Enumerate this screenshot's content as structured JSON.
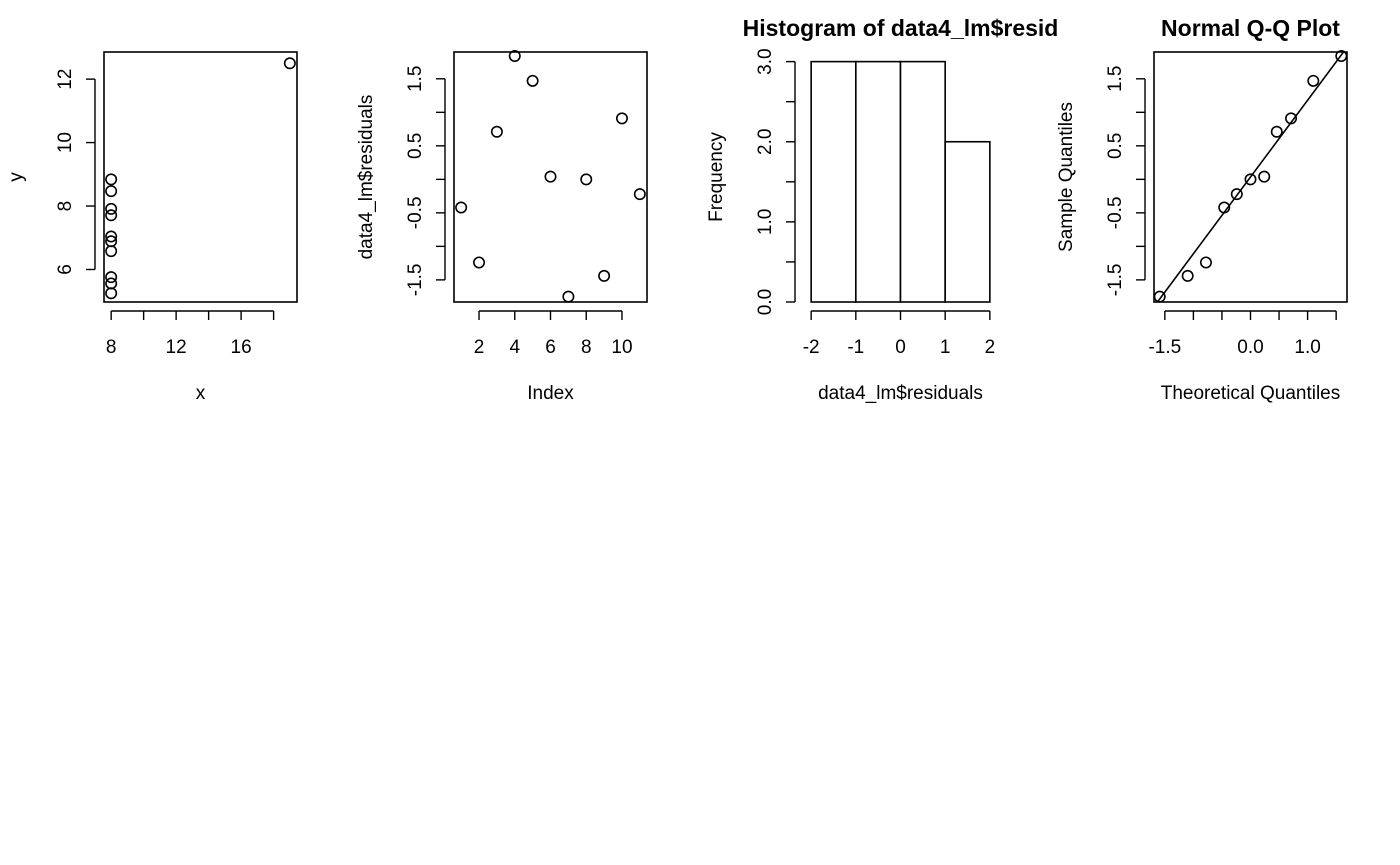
{
  "chart_data": [
    {
      "type": "scatter",
      "title": "",
      "xlabel": "x",
      "ylabel": "y",
      "xlim": [
        7.56,
        19.44
      ],
      "ylim": [
        4.975,
        12.855
      ],
      "xticks": [
        8,
        12,
        16
      ],
      "xticks_minor": [
        10,
        14,
        18
      ],
      "yticks": [
        6,
        8,
        10,
        12
      ],
      "x": [
        8,
        8,
        8,
        8,
        8,
        8,
        8,
        19,
        8,
        8,
        8
      ],
      "y": [
        6.58,
        5.76,
        7.71,
        8.84,
        8.47,
        7.04,
        5.25,
        12.5,
        5.56,
        7.91,
        6.89
      ]
    },
    {
      "type": "scatter",
      "title": "",
      "xlabel": "Index",
      "ylabel": "data4_lm$residuals",
      "xlim": [
        0.6,
        11.4
      ],
      "ylim": [
        -1.83,
        1.9
      ],
      "xticks": [
        2,
        4,
        6,
        8,
        10
      ],
      "yticks": [
        -1.5,
        -0.5,
        0.5,
        1.5
      ],
      "yticks_minor": [
        -1.0,
        0.0,
        1.0
      ],
      "x": [
        1,
        2,
        3,
        4,
        5,
        6,
        7,
        8,
        9,
        10,
        11
      ],
      "y": [
        -0.42,
        -1.24,
        0.71,
        1.84,
        1.47,
        0.04,
        -1.75,
        0.0,
        -1.44,
        0.91,
        -0.22
      ]
    },
    {
      "type": "bar",
      "title": "Histogram of data4_lm$resid",
      "xlabel": "data4_lm$residuals",
      "ylabel": "Frequency",
      "xlim": [
        -2.16,
        2.16
      ],
      "ylim": [
        0,
        3.12
      ],
      "xticks": [
        -2,
        -1,
        0,
        1,
        2
      ],
      "yticks": [
        0.0,
        1.0,
        2.0,
        3.0
      ],
      "yticks_minor": [
        0.5,
        1.5,
        2.5
      ],
      "bins": [
        -2,
        -1,
        0,
        1,
        2
      ],
      "counts": [
        3,
        3,
        3,
        2
      ]
    },
    {
      "type": "scatter",
      "title": "Normal Q-Q Plot",
      "xlabel": "Theoretical Quantiles",
      "ylabel": "Sample Quantiles",
      "xlim": [
        -1.69,
        1.69
      ],
      "ylim": [
        -1.83,
        1.9
      ],
      "xticks": [
        -1.5,
        0.0,
        1.0
      ],
      "xticks_minor": [
        -1.0,
        -0.5,
        0.5,
        1.5
      ],
      "yticks": [
        -1.5,
        -0.5,
        0.5,
        1.5
      ],
      "yticks_minor": [
        -1.0,
        0.0,
        1.0
      ],
      "x": [
        -1.59,
        -1.1,
        -0.78,
        -0.46,
        -0.24,
        0.0,
        0.24,
        0.46,
        0.71,
        1.1,
        1.59
      ],
      "y": [
        -1.75,
        -1.44,
        -1.24,
        -0.42,
        -0.22,
        0.0,
        0.04,
        0.71,
        0.91,
        1.47,
        1.84
      ],
      "qqline": [
        [
          -1.69,
          -1.9
        ],
        [
          1.69,
          1.97
        ]
      ]
    }
  ]
}
